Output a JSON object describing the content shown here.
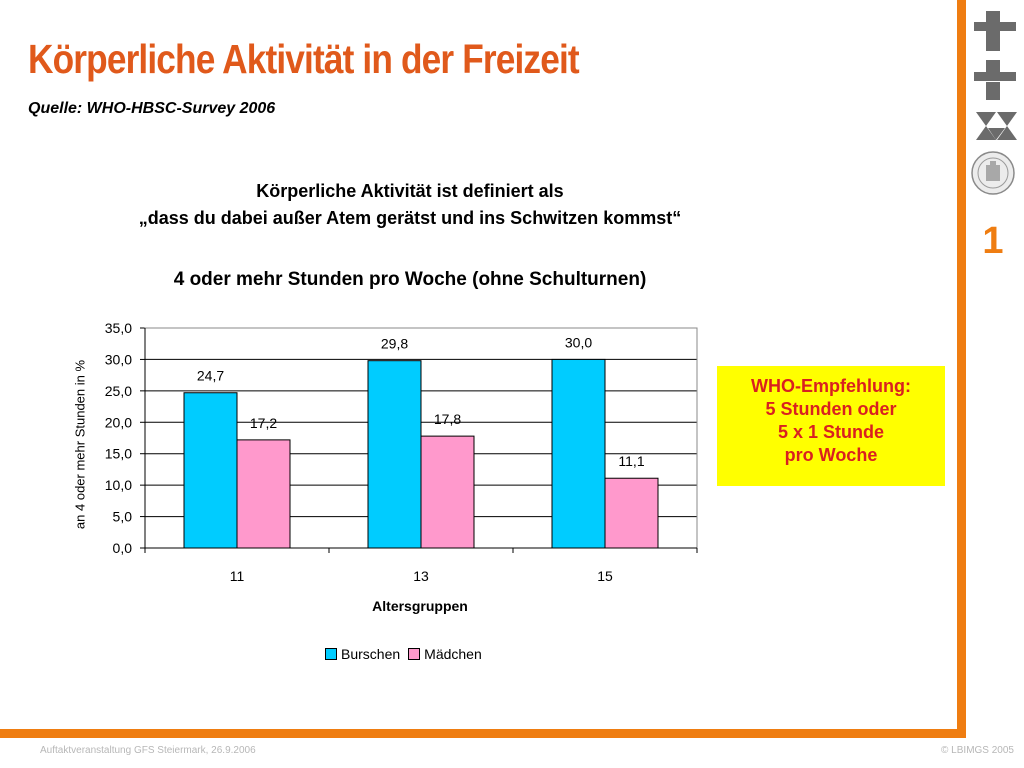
{
  "slide": {
    "title": "Körperliche Aktivität in der Freizeit",
    "source": "Quelle: WHO-HBSC-Survey 2006",
    "definition_line1": "Körperliche Aktivität ist definiert als",
    "definition_line2": "„dass du dabei außer Atem gerätst und ins Schwitzen kommst“",
    "number": "1",
    "accent_color": "#ef7d11",
    "title_color": "#e0591b"
  },
  "callout": {
    "lines": [
      "WHO-Empfehlung:",
      "5 Stunden oder",
      "5 x 1 Stunde",
      "pro Woche"
    ],
    "background": "#ffff00",
    "text_color": "#d92020"
  },
  "footer": {
    "left": "Auftaktveranstaltung GFS Steiermark, 26.9.2006",
    "right": "© LBIMGS 2005"
  },
  "logos": [
    "institute-logo-icon",
    "university-seal-icon"
  ],
  "chart_data": {
    "type": "bar",
    "title": "4 oder mehr Stunden pro Woche (ohne Schulturnen)",
    "xlabel": "Altersgruppen",
    "ylabel": "an 4 oder mehr Stunden in %",
    "categories": [
      "11",
      "13",
      "15"
    ],
    "series": [
      {
        "name": "Burschen",
        "values": [
          24.7,
          29.8,
          30.0
        ],
        "labels": [
          "24,7",
          "29,8",
          "30,0"
        ],
        "color": "#00ccff"
      },
      {
        "name": "Mädchen",
        "values": [
          17.2,
          17.8,
          11.1
        ],
        "labels": [
          "17,2",
          "17,8",
          "11,1"
        ],
        "color": "#ff99cc"
      }
    ],
    "ylim": [
      0,
      35
    ],
    "yticks": [
      0,
      5,
      10,
      15,
      20,
      25,
      30,
      35
    ],
    "ytick_labels": [
      "0,0",
      "5,0",
      "10,0",
      "15,0",
      "20,0",
      "25,0",
      "30,0",
      "35,0"
    ],
    "grid": true,
    "legend": "bottom"
  }
}
